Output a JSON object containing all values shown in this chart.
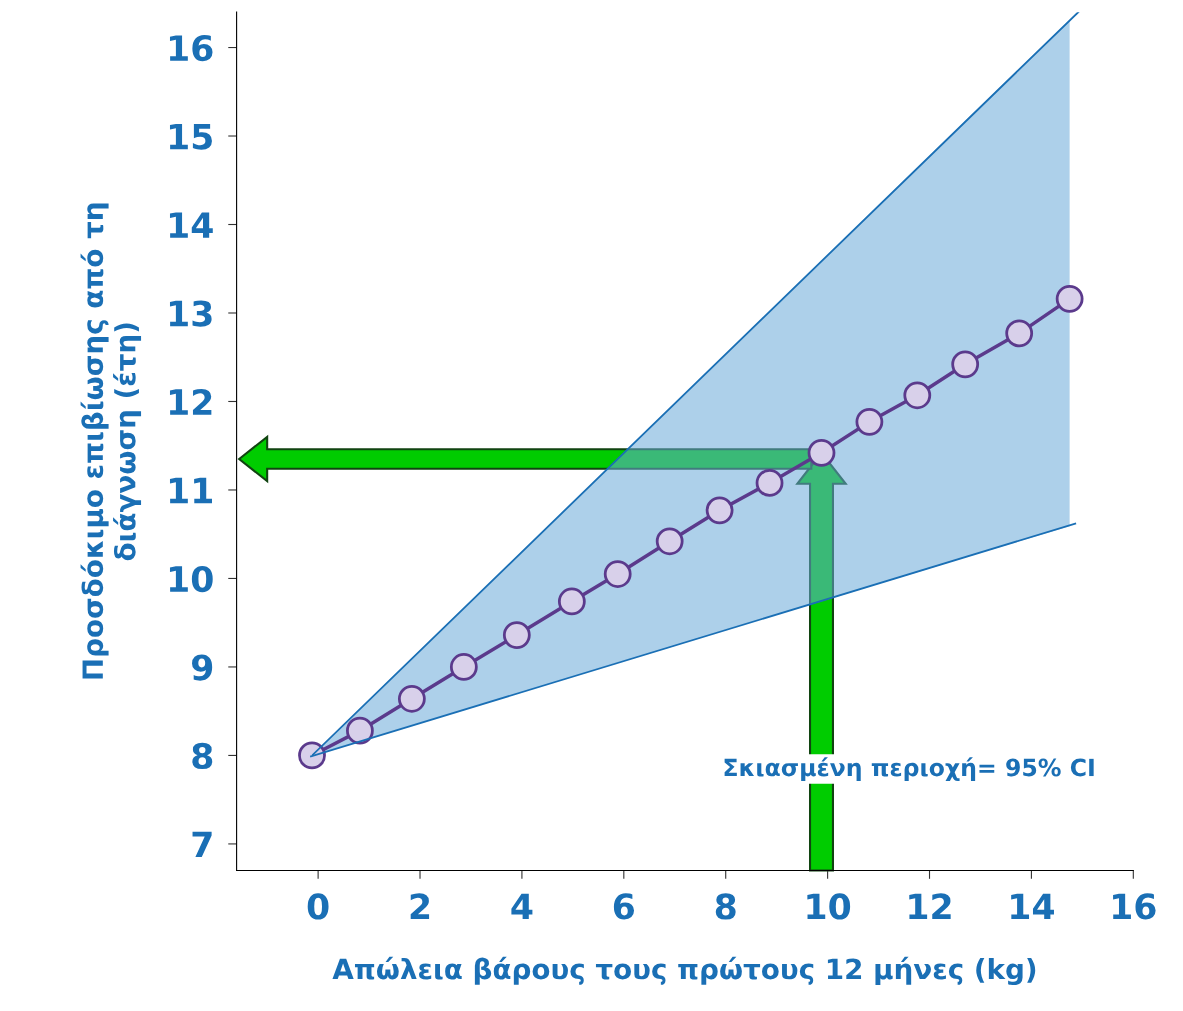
{
  "chart_data": {
    "type": "line",
    "xlabel": "Απώλεια βάρους τους πρώτους 12 μήνες (kg)",
    "ylabel": "Προσδόκιμο επιβίωσης από τη\nδιάγνωση (έτη)",
    "x": [
      -0.12,
      0.82,
      1.84,
      2.86,
      3.9,
      4.98,
      5.88,
      6.9,
      7.88,
      8.86,
      9.88,
      10.82,
      11.76,
      12.7,
      13.76,
      14.75
    ],
    "series": [
      {
        "color": "#5b3a8c",
        "marker": "circle",
        "values": [
          8.0,
          8.28,
          8.64,
          9.0,
          9.36,
          9.74,
          10.05,
          10.42,
          10.77,
          11.08,
          11.42,
          11.77,
          12.07,
          12.42,
          12.77,
          13.16
        ],
        "lower": [
          8.0,
          8.16,
          8.34,
          8.52,
          8.7,
          8.89,
          9.05,
          9.22,
          9.4,
          9.57,
          9.74,
          9.91,
          10.07,
          10.24,
          10.42,
          10.59
        ],
        "upper": [
          8.0,
          8.53,
          9.1,
          9.67,
          10.25,
          10.85,
          11.35,
          11.92,
          12.47,
          13.02,
          13.59,
          14.12,
          14.64,
          15.17,
          15.76,
          16.31
        ]
      },
      {
        "color": "#1a6fb5",
        "marker": "none",
        "x": [
          -0.1,
          14.92
        ],
        "values": [
          8.01,
          16.4
        ]
      },
      {
        "color": "#1a6fb5",
        "marker": "none",
        "x": [
          -0.14,
          14.86
        ],
        "values": [
          7.99,
          10.62
        ]
      }
    ],
    "line_style": "solid",
    "grid": false,
    "xlim": [
      -1.6,
      16
    ],
    "ylim": [
      6.7,
      16.4
    ],
    "xticks": [
      0,
      2,
      4,
      6,
      8,
      10,
      12,
      14,
      16
    ],
    "yticks": [
      7,
      8,
      9,
      10,
      11,
      12,
      13,
      14,
      15,
      16
    ],
    "annotations": [
      "Σκιασμένη περιοχή= 95% CI"
    ]
  }
}
